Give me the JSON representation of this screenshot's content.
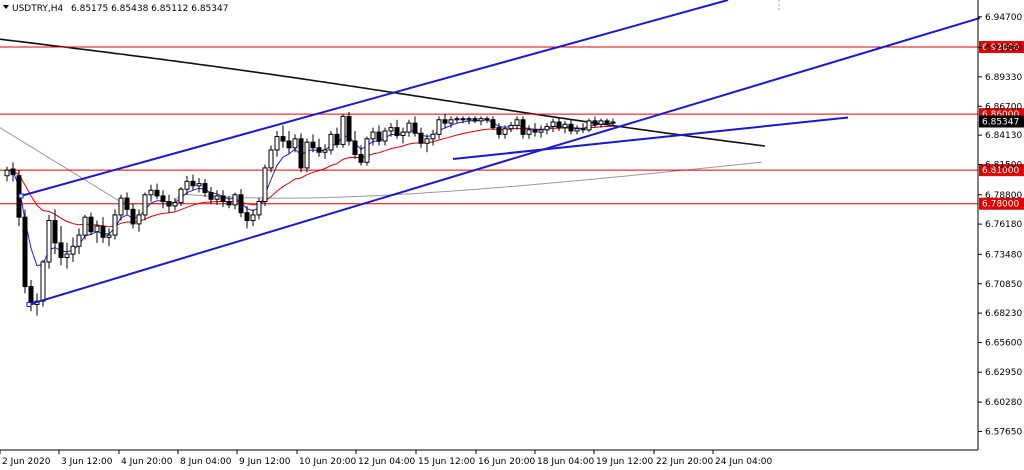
{
  "header": {
    "symbol": "USDTRY,H4",
    "ohlc": "6.85175 6.85438 6.85112 6.85347"
  },
  "chart_data": {
    "type": "candlestick",
    "title": "USDTRY,H4",
    "ylim": [
      6.56,
      6.962
    ],
    "y_ticks": [
      "6.94700",
      "6.91960",
      "6.89330",
      "6.86700",
      "6.84130",
      "6.81500",
      "6.78800",
      "6.76180",
      "6.73480",
      "6.70850",
      "6.68230",
      "6.65600",
      "6.62950",
      "6.60280",
      "6.57650"
    ],
    "x_ticks": [
      "2 Jun 2020",
      "3 Jun 12:00",
      "4 Jun 20:00",
      "8 Jun 04:00",
      "9 Jun 12:00",
      "10 Jun 20:00",
      "12 Jun 04:00",
      "15 Jun 12:00",
      "16 Jun 20:00",
      "18 Jun 04:00",
      "19 Jun 12:00",
      "22 Jun 20:00",
      "24 Jun 04:00"
    ],
    "levels": [
      {
        "label": "6.92000",
        "value": 6.92
      },
      {
        "label": "6.86000",
        "value": 6.86
      },
      {
        "label": "6.81000",
        "value": 6.81
      },
      {
        "label": "6.78000",
        "value": 6.78
      }
    ],
    "current_price": {
      "label": "6.85347",
      "value": 6.85347
    },
    "candles": [
      {
        "o": 6.805,
        "h": 6.813,
        "l": 6.8,
        "c": 6.81
      },
      {
        "o": 6.811,
        "h": 6.817,
        "l": 6.8,
        "c": 6.806
      },
      {
        "o": 6.805,
        "h": 6.81,
        "l": 6.76,
        "c": 6.768
      },
      {
        "o": 6.768,
        "h": 6.775,
        "l": 6.7,
        "c": 6.706
      },
      {
        "o": 6.706,
        "h": 6.712,
        "l": 6.684,
        "c": 6.69
      },
      {
        "o": 6.69,
        "h": 6.7,
        "l": 6.68,
        "c": 6.693
      },
      {
        "o": 6.693,
        "h": 6.73,
        "l": 6.688,
        "c": 6.728
      },
      {
        "o": 6.728,
        "h": 6.77,
        "l": 6.722,
        "c": 6.765
      },
      {
        "o": 6.765,
        "h": 6.775,
        "l": 6.735,
        "c": 6.745
      },
      {
        "o": 6.745,
        "h": 6.76,
        "l": 6.725,
        "c": 6.732
      },
      {
        "o": 6.732,
        "h": 6.745,
        "l": 6.722,
        "c": 6.735
      },
      {
        "o": 6.735,
        "h": 6.75,
        "l": 6.728,
        "c": 6.742
      },
      {
        "o": 6.742,
        "h": 6.758,
        "l": 6.735,
        "c": 6.752
      },
      {
        "o": 6.752,
        "h": 6.77,
        "l": 6.748,
        "c": 6.768
      },
      {
        "o": 6.768,
        "h": 6.772,
        "l": 6.752,
        "c": 6.755
      },
      {
        "o": 6.755,
        "h": 6.765,
        "l": 6.745,
        "c": 6.76
      },
      {
        "o": 6.76,
        "h": 6.768,
        "l": 6.745,
        "c": 6.75
      },
      {
        "o": 6.75,
        "h": 6.758,
        "l": 6.742,
        "c": 6.752
      },
      {
        "o": 6.752,
        "h": 6.775,
        "l": 6.748,
        "c": 6.77
      },
      {
        "o": 6.77,
        "h": 6.788,
        "l": 6.765,
        "c": 6.785
      },
      {
        "o": 6.785,
        "h": 6.79,
        "l": 6.77,
        "c": 6.775
      },
      {
        "o": 6.775,
        "h": 6.78,
        "l": 6.758,
        "c": 6.762
      },
      {
        "o": 6.762,
        "h": 6.775,
        "l": 6.755,
        "c": 6.77
      },
      {
        "o": 6.77,
        "h": 6.79,
        "l": 6.765,
        "c": 6.788
      },
      {
        "o": 6.788,
        "h": 6.797,
        "l": 6.782,
        "c": 6.792
      },
      {
        "o": 6.792,
        "h": 6.798,
        "l": 6.784,
        "c": 6.787
      },
      {
        "o": 6.787,
        "h": 6.792,
        "l": 6.776,
        "c": 6.782
      },
      {
        "o": 6.782,
        "h": 6.788,
        "l": 6.772,
        "c": 6.778
      },
      {
        "o": 6.778,
        "h": 6.785,
        "l": 6.774,
        "c": 6.781
      },
      {
        "o": 6.781,
        "h": 6.795,
        "l": 6.778,
        "c": 6.793
      },
      {
        "o": 6.793,
        "h": 6.805,
        "l": 6.788,
        "c": 6.8
      },
      {
        "o": 6.8,
        "h": 6.806,
        "l": 6.792,
        "c": 6.796
      },
      {
        "o": 6.796,
        "h": 6.803,
        "l": 6.79,
        "c": 6.798
      },
      {
        "o": 6.798,
        "h": 6.802,
        "l": 6.786,
        "c": 6.79
      },
      {
        "o": 6.79,
        "h": 6.795,
        "l": 6.78,
        "c": 6.784
      },
      {
        "o": 6.784,
        "h": 6.792,
        "l": 6.779,
        "c": 6.787
      },
      {
        "o": 6.787,
        "h": 6.792,
        "l": 6.777,
        "c": 6.782
      },
      {
        "o": 6.782,
        "h": 6.787,
        "l": 6.776,
        "c": 6.779
      },
      {
        "o": 6.779,
        "h": 6.79,
        "l": 6.775,
        "c": 6.788
      },
      {
        "o": 6.788,
        "h": 6.793,
        "l": 6.768,
        "c": 6.772
      },
      {
        "o": 6.772,
        "h": 6.778,
        "l": 6.758,
        "c": 6.765
      },
      {
        "o": 6.765,
        "h": 6.775,
        "l": 6.76,
        "c": 6.77
      },
      {
        "o": 6.77,
        "h": 6.785,
        "l": 6.766,
        "c": 6.782
      },
      {
        "o": 6.782,
        "h": 6.815,
        "l": 6.778,
        "c": 6.812
      },
      {
        "o": 6.812,
        "h": 6.832,
        "l": 6.808,
        "c": 6.828
      },
      {
        "o": 6.828,
        "h": 6.845,
        "l": 6.822,
        "c": 6.84
      },
      {
        "o": 6.84,
        "h": 6.85,
        "l": 6.83,
        "c": 6.836
      },
      {
        "o": 6.836,
        "h": 6.845,
        "l": 6.825,
        "c": 6.83
      },
      {
        "o": 6.83,
        "h": 6.842,
        "l": 6.826,
        "c": 6.838
      },
      {
        "o": 6.838,
        "h": 6.843,
        "l": 6.808,
        "c": 6.812
      },
      {
        "o": 6.812,
        "h": 6.838,
        "l": 6.808,
        "c": 6.835
      },
      {
        "o": 6.835,
        "h": 6.842,
        "l": 6.826,
        "c": 6.83
      },
      {
        "o": 6.83,
        "h": 6.838,
        "l": 6.822,
        "c": 6.826
      },
      {
        "o": 6.826,
        "h": 6.833,
        "l": 6.82,
        "c": 6.828
      },
      {
        "o": 6.828,
        "h": 6.845,
        "l": 6.824,
        "c": 6.842
      },
      {
        "o": 6.842,
        "h": 6.848,
        "l": 6.83,
        "c": 6.833
      },
      {
        "o": 6.833,
        "h": 6.86,
        "l": 6.83,
        "c": 6.858
      },
      {
        "o": 6.858,
        "h": 6.862,
        "l": 6.832,
        "c": 6.836
      },
      {
        "o": 6.836,
        "h": 6.845,
        "l": 6.82,
        "c": 6.824
      },
      {
        "o": 6.824,
        "h": 6.832,
        "l": 6.814,
        "c": 6.817
      },
      {
        "o": 6.817,
        "h": 6.84,
        "l": 6.814,
        "c": 6.838
      },
      {
        "o": 6.838,
        "h": 6.848,
        "l": 6.832,
        "c": 6.844
      },
      {
        "o": 6.844,
        "h": 6.85,
        "l": 6.832,
        "c": 6.836
      },
      {
        "o": 6.836,
        "h": 6.848,
        "l": 6.832,
        "c": 6.845
      },
      {
        "o": 6.845,
        "h": 6.852,
        "l": 6.84,
        "c": 6.848
      },
      {
        "o": 6.848,
        "h": 6.855,
        "l": 6.838,
        "c": 6.841
      },
      {
        "o": 6.841,
        "h": 6.848,
        "l": 6.834,
        "c": 6.844
      },
      {
        "o": 6.844,
        "h": 6.855,
        "l": 6.84,
        "c": 6.852
      },
      {
        "o": 6.852,
        "h": 6.858,
        "l": 6.84,
        "c": 6.843
      },
      {
        "o": 6.843,
        "h": 6.848,
        "l": 6.83,
        "c": 6.834
      },
      {
        "o": 6.834,
        "h": 6.842,
        "l": 6.826,
        "c": 6.838
      },
      {
        "o": 6.838,
        "h": 6.846,
        "l": 6.832,
        "c": 6.842
      },
      {
        "o": 6.842,
        "h": 6.858,
        "l": 6.838,
        "c": 6.855
      },
      {
        "o": 6.855,
        "h": 6.86,
        "l": 6.848,
        "c": 6.852
      },
      {
        "o": 6.852,
        "h": 6.858,
        "l": 6.848,
        "c": 6.855
      },
      {
        "o": 6.855,
        "h": 6.858,
        "l": 6.852,
        "c": 6.856
      },
      {
        "o": 6.856,
        "h": 6.858,
        "l": 6.852,
        "c": 6.855
      },
      {
        "o": 6.855,
        "h": 6.858,
        "l": 6.851,
        "c": 6.856
      },
      {
        "o": 6.856,
        "h": 6.858,
        "l": 6.852,
        "c": 6.854
      },
      {
        "o": 6.854,
        "h": 6.858,
        "l": 6.85,
        "c": 6.856
      },
      {
        "o": 6.856,
        "h": 6.858,
        "l": 6.852,
        "c": 6.855
      },
      {
        "o": 6.855,
        "h": 6.858,
        "l": 6.846,
        "c": 6.848
      },
      {
        "o": 6.848,
        "h": 6.852,
        "l": 6.838,
        "c": 6.842
      },
      {
        "o": 6.842,
        "h": 6.85,
        "l": 6.838,
        "c": 6.847
      },
      {
        "o": 6.847,
        "h": 6.853,
        "l": 6.844,
        "c": 6.85
      },
      {
        "o": 6.85,
        "h": 6.858,
        "l": 6.846,
        "c": 6.855
      },
      {
        "o": 6.855,
        "h": 6.858,
        "l": 6.838,
        "c": 6.842
      },
      {
        "o": 6.842,
        "h": 6.85,
        "l": 6.838,
        "c": 6.846
      },
      {
        "o": 6.846,
        "h": 6.852,
        "l": 6.84,
        "c": 6.844
      },
      {
        "o": 6.844,
        "h": 6.85,
        "l": 6.839,
        "c": 6.846
      },
      {
        "o": 6.846,
        "h": 6.852,
        "l": 6.842,
        "c": 6.849
      },
      {
        "o": 6.849,
        "h": 6.856,
        "l": 6.844,
        "c": 6.853
      },
      {
        "o": 6.853,
        "h": 6.857,
        "l": 6.845,
        "c": 6.848
      },
      {
        "o": 6.848,
        "h": 6.854,
        "l": 6.843,
        "c": 6.851
      },
      {
        "o": 6.851,
        "h": 6.855,
        "l": 6.842,
        "c": 6.845
      },
      {
        "o": 6.845,
        "h": 6.85,
        "l": 6.842,
        "c": 6.847
      },
      {
        "o": 6.847,
        "h": 6.852,
        "l": 6.843,
        "c": 6.846
      },
      {
        "o": 6.846,
        "h": 6.856,
        "l": 6.844,
        "c": 6.854
      },
      {
        "o": 6.854,
        "h": 6.858,
        "l": 6.848,
        "c": 6.851
      },
      {
        "o": 6.851,
        "h": 6.856,
        "l": 6.848,
        "c": 6.854
      },
      {
        "o": 6.854,
        "h": 6.856,
        "l": 6.85,
        "c": 6.852
      },
      {
        "o": 6.852,
        "h": 6.856,
        "l": 6.849,
        "c": 6.853
      }
    ],
    "trendlines": [
      {
        "name": "upper-channel",
        "x1": 21,
        "y1": 6.787,
        "x2": 728,
        "y2": 6.962
      },
      {
        "name": "lower-channel",
        "x1": 29,
        "y1": 6.69,
        "x2": 980,
        "y2": 6.946
      },
      {
        "name": "support-line",
        "x1": 453,
        "y1": 6.82,
        "x2": 848,
        "y2": 6.857
      }
    ],
    "colors": {
      "bull": "#ffffff",
      "bear": "#000000",
      "trend": "#1a1acd",
      "fast_ma": "#2020ff",
      "mid_ma": "#e00000",
      "slow_ma": "#111111",
      "slowest_ma": "#9a9a9a",
      "level": "#e00000",
      "grid": "#c8c8c8"
    }
  }
}
